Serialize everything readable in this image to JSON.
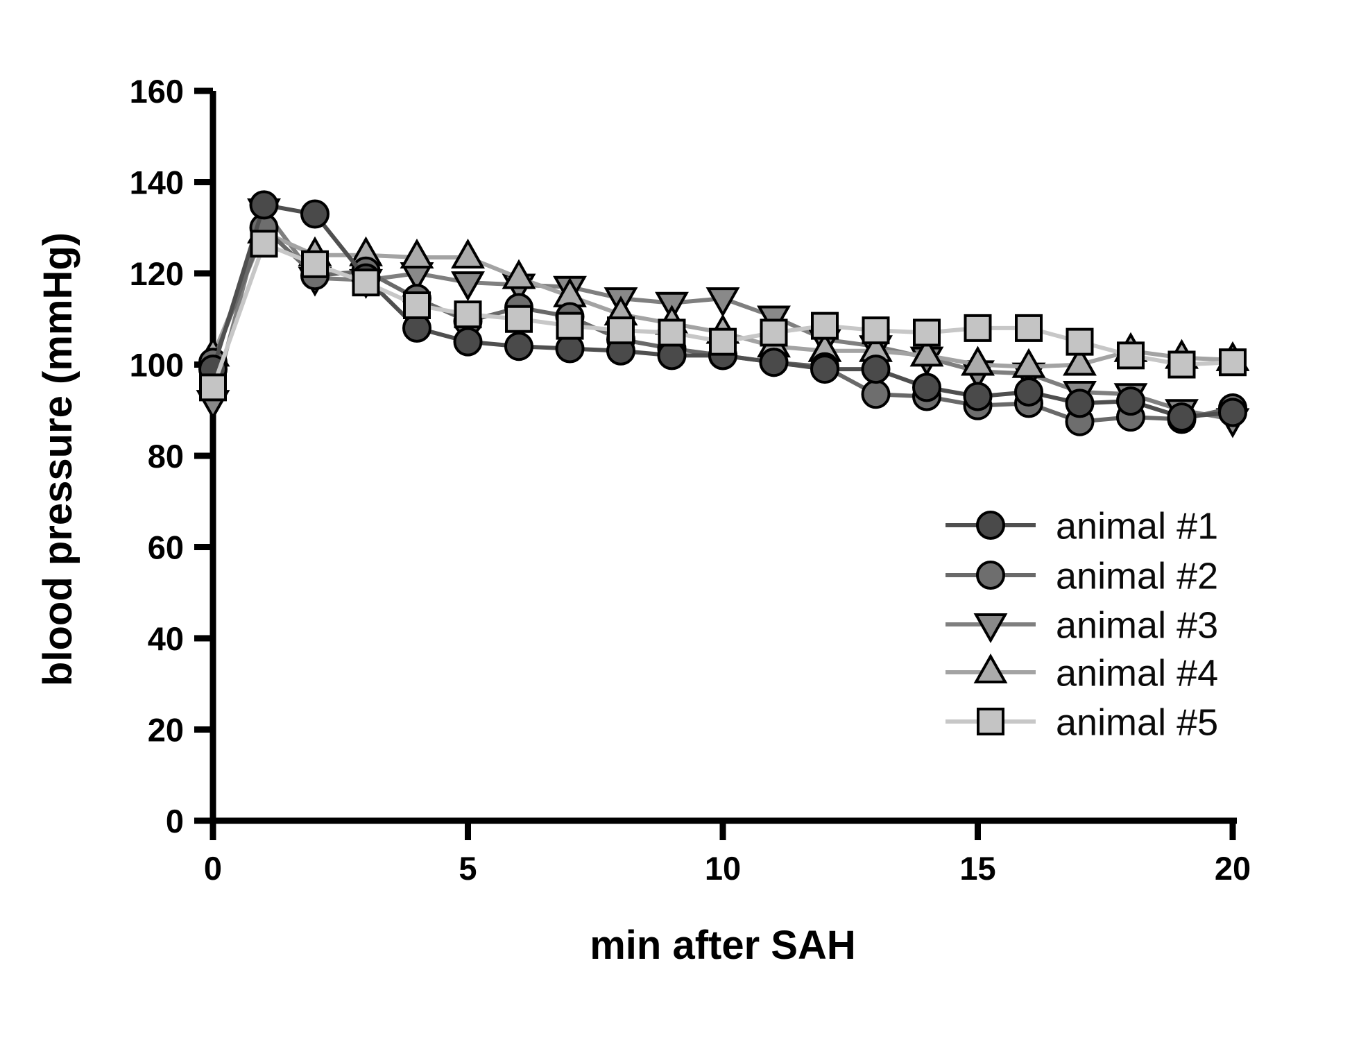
{
  "chart_data": {
    "type": "line",
    "title": "",
    "xlabel": "min after SAH",
    "ylabel": "blood pressure (mmHg)",
    "xlim": [
      0,
      20
    ],
    "ylim": [
      0,
      160
    ],
    "xticks": [
      0,
      5,
      10,
      15,
      20
    ],
    "yticks": [
      0,
      20,
      40,
      60,
      80,
      100,
      120,
      140,
      160
    ],
    "grid": false,
    "legend_position": "inside-right-middle",
    "x": [
      0,
      1,
      2,
      3,
      4,
      5,
      6,
      7,
      8,
      9,
      10,
      11,
      12,
      13,
      14,
      15,
      16,
      17,
      18,
      19,
      20
    ],
    "series": [
      {
        "name": "animal #1",
        "marker": "circle",
        "marker_fill": "#4a4a4a",
        "line_color": "#4f4f4f",
        "values": [
          99,
          135,
          133,
          119,
          108,
          105,
          104,
          103.5,
          103,
          102,
          102,
          100.5,
          99,
          99,
          95,
          93,
          94,
          91.5,
          92,
          88.5,
          89.5
        ]
      },
      {
        "name": "animal #2",
        "marker": "circle",
        "marker_fill": "#6e6e6e",
        "line_color": "#696969",
        "values": [
          100.5,
          130,
          119.5,
          120.5,
          114.5,
          109.5,
          112.5,
          110.5,
          105.5,
          103.5,
          102,
          100.5,
          99.5,
          93.5,
          93,
          91,
          91.5,
          87.5,
          88.5,
          88,
          90.5
        ]
      },
      {
        "name": "animal #3",
        "marker": "triangle-down",
        "marker_fill": "#898989",
        "line_color": "#7f7f7f",
        "values": [
          92,
          134,
          119,
          118.5,
          120,
          118,
          117.5,
          117,
          114.5,
          113.5,
          114.5,
          110.5,
          105.5,
          104,
          101.5,
          98.5,
          98,
          94,
          93.5,
          90,
          88
        ]
      },
      {
        "name": "animal #4",
        "marker": "triangle-up",
        "marker_fill": "#ababab",
        "line_color": "#a3a3a3",
        "values": [
          102,
          129,
          124,
          124,
          123.5,
          123.5,
          119,
          115,
          111,
          109,
          107,
          104,
          103,
          103,
          102,
          100,
          99.5,
          100,
          103,
          101.5,
          101
        ]
      },
      {
        "name": "animal #5",
        "marker": "square",
        "marker_fill": "#c4c4c4",
        "line_color": "#c7c7c7",
        "values": [
          95,
          126.5,
          122,
          118,
          113,
          111,
          110,
          108.5,
          107.5,
          107,
          105,
          107,
          108.5,
          107.5,
          107,
          108,
          108,
          105,
          102,
          100,
          100.5
        ]
      }
    ],
    "draw_order": [
      2,
      3,
      1,
      0,
      4
    ],
    "axis_color": "#000000"
  },
  "geometry_note": "grayscale line chart, no gridlines, legend without frame"
}
